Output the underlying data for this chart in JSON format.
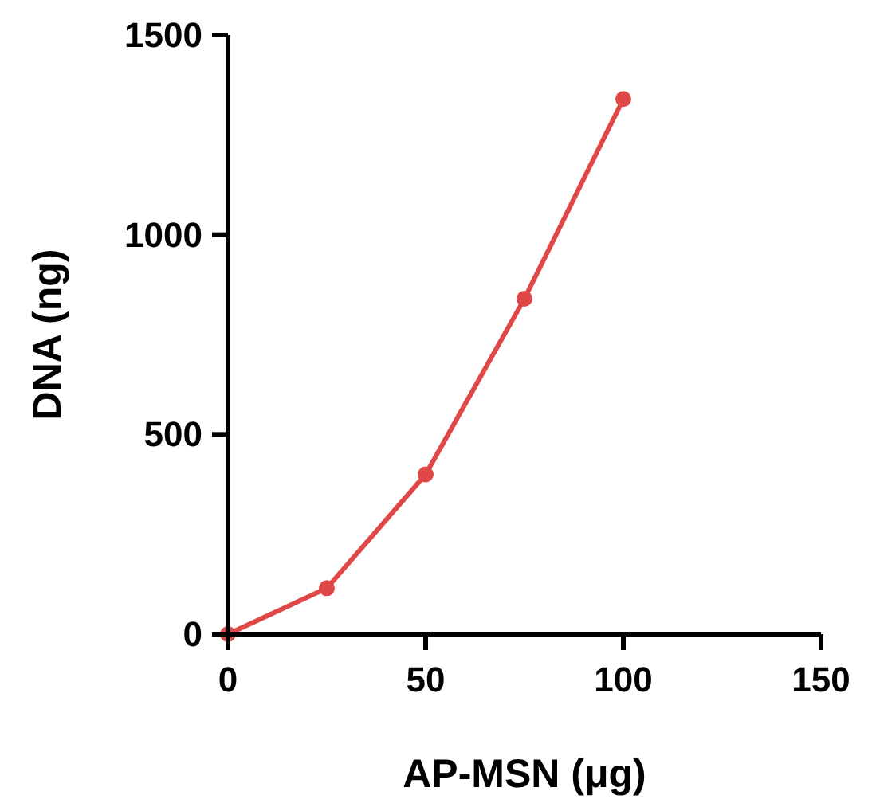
{
  "chart_data": {
    "type": "line",
    "xlabel": "AP-MSN (μg)",
    "ylabel": "DNA (ng)",
    "x": [
      0,
      25,
      50,
      75,
      100
    ],
    "series": [
      {
        "color": "#e04848",
        "values": [
          0,
          115,
          400,
          840,
          1340
        ]
      }
    ],
    "xlim": [
      0,
      150
    ],
    "xticks": [
      0,
      50,
      100,
      150
    ],
    "ylim": [
      0,
      1500
    ],
    "yticks": [
      0,
      500,
      1000,
      1500
    ],
    "marker": "circle",
    "line_style": "solid"
  }
}
